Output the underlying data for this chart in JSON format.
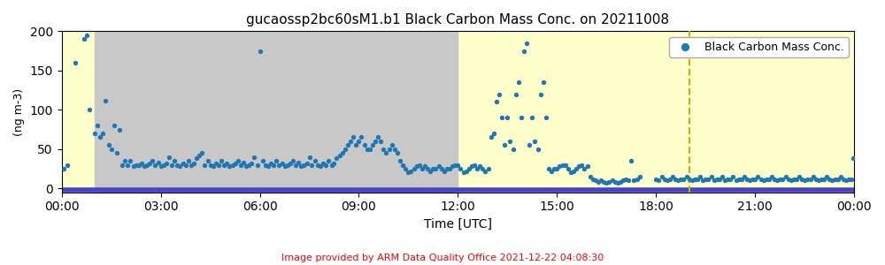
{
  "title": "gucaossp2bc60sM1.b1 Black Carbon Mass Conc. on 20211008",
  "xlabel": "Time [UTC]",
  "ylabel": "(ng m-3)",
  "legend_label": "Black Carbon Mass Conc.",
  "footer_text": "Image provided by ARM Data Quality Office 2021-12-22 04:08:30",
  "ylim": [
    -5,
    200
  ],
  "yticks": [
    0,
    50,
    100,
    150,
    200
  ],
  "dot_color": "#1f77b4",
  "dot_size": 8,
  "bg_yellow": "#ffffcc",
  "bg_gray": "#c8c8c8",
  "gray_region_start_hour": 1.0,
  "gray_region_end_hour": 12.0,
  "dashed_line_hour": 19.0,
  "dashed_line_color": "#b8b800",
  "horizontal_line_y": -2,
  "horizontal_line_color": "#4444cc",
  "xtick_hours": [
    0,
    3,
    6,
    9,
    12,
    15,
    18,
    21,
    24
  ],
  "xtick_labels": [
    "00:00",
    "03:00",
    "06:00",
    "09:00",
    "12:00",
    "15:00",
    "18:00",
    "21:00",
    "00:00"
  ],
  "data_x_hours": [
    0.07,
    0.17,
    0.42,
    0.67,
    0.75,
    0.83,
    1.0,
    1.08,
    1.17,
    1.25,
    1.33,
    1.42,
    1.5,
    1.58,
    1.67,
    1.75,
    1.83,
    1.92,
    2.0,
    2.08,
    2.17,
    2.25,
    2.33,
    2.42,
    2.5,
    2.58,
    2.67,
    2.75,
    2.83,
    2.92,
    3.0,
    3.08,
    3.17,
    3.25,
    3.33,
    3.42,
    3.5,
    3.58,
    3.67,
    3.75,
    3.83,
    3.92,
    4.0,
    4.08,
    4.17,
    4.25,
    4.33,
    4.42,
    4.5,
    4.58,
    4.67,
    4.75,
    4.83,
    4.92,
    5.0,
    5.08,
    5.17,
    5.25,
    5.33,
    5.42,
    5.5,
    5.58,
    5.67,
    5.75,
    5.83,
    5.92,
    6.0,
    6.08,
    6.17,
    6.25,
    6.33,
    6.42,
    6.5,
    6.58,
    6.67,
    6.75,
    6.83,
    6.92,
    7.0,
    7.08,
    7.17,
    7.25,
    7.33,
    7.42,
    7.5,
    7.58,
    7.67,
    7.75,
    7.83,
    7.92,
    8.0,
    8.08,
    8.17,
    8.25,
    8.33,
    8.42,
    8.5,
    8.58,
    8.67,
    8.75,
    8.83,
    8.92,
    9.0,
    9.08,
    9.17,
    9.25,
    9.33,
    9.42,
    9.5,
    9.58,
    9.67,
    9.75,
    9.83,
    9.92,
    10.0,
    10.08,
    10.17,
    10.25,
    10.33,
    10.42,
    10.5,
    10.58,
    10.67,
    10.75,
    10.83,
    10.92,
    11.0,
    11.08,
    11.17,
    11.25,
    11.33,
    11.42,
    11.5,
    11.58,
    11.67,
    11.75,
    11.83,
    11.92,
    12.0,
    12.08,
    12.17,
    12.25,
    12.33,
    12.42,
    12.5,
    12.58,
    12.67,
    12.75,
    12.83,
    12.92,
    13.0,
    13.08,
    13.17,
    13.25,
    13.33,
    13.42,
    13.5,
    13.58,
    13.67,
    13.75,
    13.83,
    13.92,
    14.0,
    14.08,
    14.17,
    14.25,
    14.33,
    14.42,
    14.5,
    14.58,
    14.67,
    14.75,
    14.83,
    14.92,
    15.0,
    15.08,
    15.17,
    15.25,
    15.33,
    15.42,
    15.5,
    15.58,
    15.67,
    15.75,
    15.83,
    15.92,
    16.0,
    16.08,
    16.17,
    16.25,
    16.33,
    16.42,
    16.5,
    16.58,
    16.67,
    16.75,
    16.83,
    16.92,
    17.0,
    17.08,
    17.17,
    17.25,
    17.33,
    17.42,
    17.5,
    18.0,
    18.08,
    18.17,
    18.25,
    18.33,
    18.42,
    18.5,
    18.58,
    18.67,
    18.75,
    18.83,
    18.92,
    19.0,
    19.08,
    19.17,
    19.25,
    19.33,
    19.42,
    19.5,
    19.58,
    19.67,
    19.75,
    19.83,
    19.92,
    20.0,
    20.08,
    20.17,
    20.25,
    20.33,
    20.42,
    20.5,
    20.58,
    20.67,
    20.75,
    20.83,
    20.92,
    21.0,
    21.08,
    21.17,
    21.25,
    21.33,
    21.42,
    21.5,
    21.58,
    21.67,
    21.75,
    21.83,
    21.92,
    22.0,
    22.08,
    22.17,
    22.25,
    22.33,
    22.42,
    22.5,
    22.58,
    22.67,
    22.75,
    22.83,
    22.92,
    23.0,
    23.08,
    23.17,
    23.25,
    23.33,
    23.42,
    23.5,
    23.58,
    23.67,
    23.75,
    23.83,
    23.92,
    23.97
  ],
  "data_y": [
    25,
    30,
    160,
    190,
    195,
    100,
    70,
    80,
    65,
    70,
    112,
    55,
    50,
    80,
    45,
    75,
    30,
    35,
    30,
    35,
    28,
    30,
    30,
    32,
    28,
    30,
    32,
    35,
    30,
    33,
    28,
    30,
    32,
    40,
    30,
    35,
    30,
    28,
    32,
    30,
    35,
    30,
    32,
    38,
    42,
    45,
    30,
    35,
    30,
    28,
    32,
    30,
    35,
    30,
    32,
    28,
    30,
    32,
    35,
    30,
    33,
    28,
    30,
    32,
    40,
    30,
    175,
    35,
    30,
    28,
    32,
    30,
    35,
    30,
    32,
    28,
    30,
    32,
    35,
    30,
    33,
    28,
    30,
    32,
    40,
    30,
    35,
    30,
    28,
    32,
    30,
    35,
    30,
    32,
    38,
    42,
    45,
    50,
    55,
    60,
    65,
    55,
    60,
    65,
    55,
    50,
    50,
    55,
    60,
    65,
    60,
    50,
    45,
    50,
    55,
    50,
    45,
    35,
    30,
    25,
    20,
    22,
    25,
    28,
    30,
    25,
    28,
    25,
    22,
    25,
    25,
    28,
    25,
    22,
    25,
    25,
    28,
    30,
    30,
    25,
    20,
    22,
    25,
    28,
    30,
    25,
    28,
    25,
    22,
    25,
    65,
    70,
    110,
    120,
    90,
    55,
    90,
    60,
    50,
    120,
    135,
    90,
    175,
    185,
    55,
    90,
    60,
    50,
    120,
    135,
    90,
    25,
    22,
    25,
    25,
    28,
    30,
    30,
    25,
    20,
    22,
    25,
    28,
    30,
    25,
    28,
    15,
    12,
    10,
    8,
    10,
    8,
    7,
    8,
    10,
    8,
    7,
    8,
    10,
    12,
    10,
    35,
    10,
    12,
    15,
    12,
    10,
    15,
    12,
    10,
    12,
    15,
    12,
    10,
    12,
    12,
    15,
    12,
    10,
    12,
    12,
    15,
    10,
    12,
    12,
    15,
    10,
    12,
    12,
    15,
    10,
    12,
    12,
    15,
    10,
    12,
    12,
    15,
    12,
    10,
    12,
    12,
    15,
    12,
    10,
    12,
    12,
    15,
    12,
    10,
    12,
    12,
    15,
    12,
    10,
    12,
    12,
    15,
    12,
    10,
    12,
    12,
    15,
    12,
    10,
    12,
    12,
    15,
    12,
    10,
    12,
    12,
    15,
    12,
    10,
    12,
    12,
    38
  ]
}
